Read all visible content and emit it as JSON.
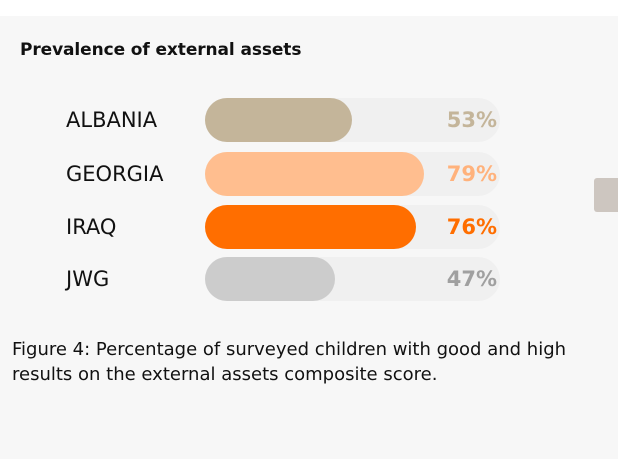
{
  "chart_data": {
    "type": "bar",
    "orientation": "horizontal",
    "title": "Prevalence of external assets",
    "categories": [
      "ALBANIA",
      "GEORGIA",
      "IRAQ",
      "JWG"
    ],
    "values": [
      53,
      79,
      76,
      47
    ],
    "value_labels": [
      "53%",
      "79%",
      "76%",
      "47%"
    ],
    "colors": [
      "#c4b59a",
      "#ffbe8f",
      "#ff6e00",
      "#cccccc"
    ],
    "label_colors": [
      "#c4b59a",
      "#ffb27c",
      "#ff6e00",
      "#a0a0a0"
    ],
    "track_color": "#f0f0f0",
    "xlim": [
      0,
      100
    ],
    "grid": false,
    "legend": "none"
  },
  "caption": "Figure 4: Percentage of surveyed children with good and high results on the external assets composite score."
}
